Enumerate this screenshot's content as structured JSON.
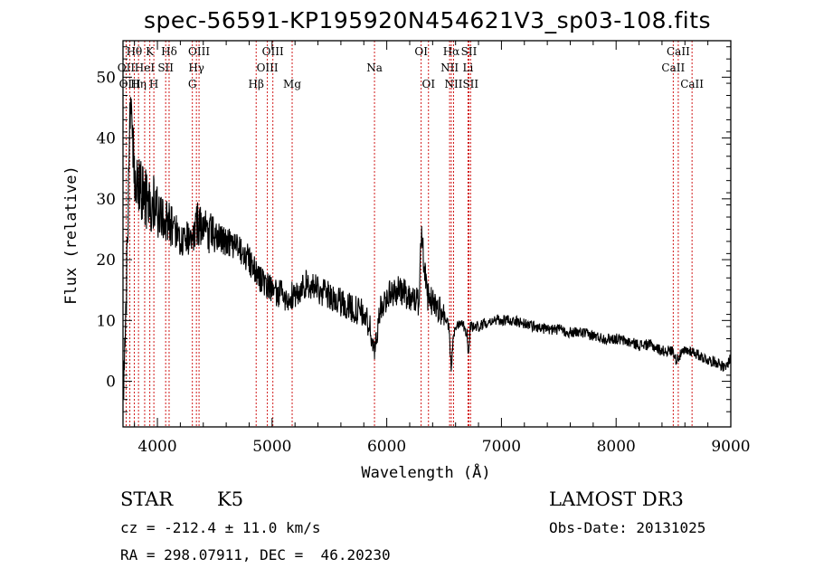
{
  "title": "spec-56591-KP195920N454621V3_sp03-108.fits",
  "info": {
    "object_class": "STAR",
    "subclass": "K5",
    "survey": "LAMOST DR3",
    "velocity": "cz = -212.4 ± 11.0 km/s",
    "obs_date": "Obs-Date: 20131025",
    "coords": "RA = 298.07911, DEC =  46.20230"
  },
  "colors": {
    "spectrum": "#000000",
    "line_marker": "#cc0000",
    "axes": "#000000"
  },
  "chart_data": {
    "type": "line",
    "title": "spec-56591-KP195920N454621V3_sp03-108.fits",
    "xlabel": "Wavelength (Å)",
    "ylabel": "Flux (relative)",
    "xlim": [
      3700,
      9000
    ],
    "ylim": [
      -7.5,
      56
    ],
    "xticks": [
      4000,
      5000,
      6000,
      7000,
      8000,
      9000
    ],
    "yticks": [
      0,
      10,
      20,
      30,
      40,
      50
    ],
    "spectrum_anchors": {
      "x": [
        3700,
        3720,
        3760,
        3800,
        3850,
        3900,
        3950,
        4000,
        4050,
        4100,
        4150,
        4200,
        4300,
        4350,
        4400,
        4500,
        4600,
        4700,
        4800,
        4850,
        4900,
        4950,
        5000,
        5100,
        5200,
        5300,
        5400,
        5500,
        5600,
        5700,
        5800,
        5850,
        5880,
        5895,
        5910,
        5950,
        6000,
        6100,
        6200,
        6280,
        6300,
        6350,
        6400,
        6450,
        6500,
        6540,
        6563,
        6580,
        6600,
        6650,
        6700,
        6710,
        6730,
        6800,
        6900,
        7000,
        7100,
        7200,
        7300,
        7400,
        7500,
        7600,
        7700,
        7800,
        7900,
        8000,
        8100,
        8200,
        8300,
        8400,
        8500,
        8520,
        8542,
        8600,
        8662,
        8700,
        8800,
        8900,
        8950,
        9000
      ],
      "y": [
        0,
        5,
        45,
        35,
        32,
        30,
        30,
        27,
        27,
        26,
        25,
        24,
        24,
        26,
        25,
        24,
        23,
        22,
        20,
        18,
        17,
        16,
        15,
        14,
        14,
        16,
        15,
        14,
        13,
        12,
        11,
        9,
        6,
        4,
        8,
        12,
        14,
        15,
        14,
        13,
        25,
        14,
        13,
        12,
        11,
        9,
        2,
        7,
        9,
        10,
        8,
        4,
        9,
        9,
        10,
        10,
        10,
        9.5,
        9,
        8.5,
        8.5,
        8,
        8,
        7.5,
        7,
        7,
        6.5,
        6,
        6,
        5,
        5,
        3.5,
        4,
        5,
        5,
        4.5,
        3.5,
        3,
        2,
        4
      ]
    },
    "spectral_lines": [
      {
        "label": "Hθ",
        "wavelength": 3798,
        "row": 0
      },
      {
        "label": "K",
        "wavelength": 3934,
        "row": 0
      },
      {
        "label": "Hδ",
        "wavelength": 4102,
        "row": 0
      },
      {
        "label": "OIII",
        "wavelength": 4363,
        "row": 0
      },
      {
        "label": "OIII",
        "wavelength": 5007,
        "row": 0
      },
      {
        "label": "OI",
        "wavelength": 6300,
        "row": 0
      },
      {
        "label": "Hα",
        "wavelength": 6563,
        "row": 0
      },
      {
        "label": "SII",
        "wavelength": 6717,
        "row": 0
      },
      {
        "label": "CaII",
        "wavelength": 8542,
        "row": 0
      },
      {
        "label": "OII",
        "wavelength": 3727,
        "row": 1
      },
      {
        "label": "HeI",
        "wavelength": 3889,
        "row": 1
      },
      {
        "label": "SII",
        "wavelength": 4072,
        "row": 1
      },
      {
        "label": "Hγ",
        "wavelength": 4340,
        "row": 1
      },
      {
        "label": "OIII",
        "wavelength": 4959,
        "row": 1
      },
      {
        "label": "Na",
        "wavelength": 5893,
        "row": 1
      },
      {
        "label": "NII",
        "wavelength": 6548,
        "row": 1
      },
      {
        "label": "Li",
        "wavelength": 6708,
        "row": 1
      },
      {
        "label": "CaII",
        "wavelength": 8498,
        "row": 1
      },
      {
        "label": "OIII",
        "wavelength": 3760,
        "row": 2
      },
      {
        "label": "Hη",
        "wavelength": 3835,
        "row": 2
      },
      {
        "label": "H",
        "wavelength": 3969,
        "row": 2
      },
      {
        "label": "G",
        "wavelength": 4305,
        "row": 2
      },
      {
        "label": "Hβ",
        "wavelength": 4861,
        "row": 2
      },
      {
        "label": "Mg",
        "wavelength": 5175,
        "row": 2
      },
      {
        "label": "OI",
        "wavelength": 6364,
        "row": 2
      },
      {
        "label": "NII",
        "wavelength": 6583,
        "row": 2
      },
      {
        "label": "SII",
        "wavelength": 6731,
        "row": 2
      },
      {
        "label": "CaII",
        "wavelength": 8662,
        "row": 2
      }
    ]
  }
}
